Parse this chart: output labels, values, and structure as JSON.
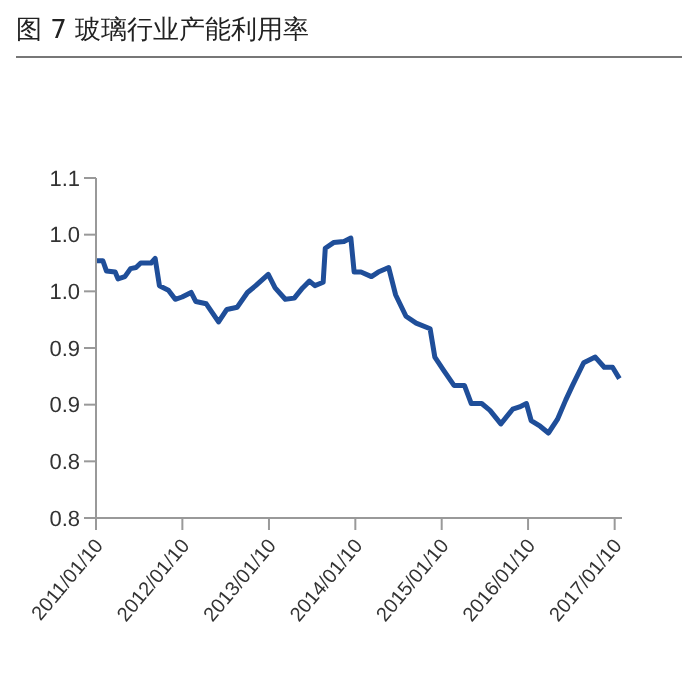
{
  "chart_data": {
    "type": "line",
    "title": "图 7 玻璃行业产能利用率",
    "x": [
      "2011-01-10",
      "2011-02-08",
      "2011-02-23",
      "2011-04-01",
      "2011-04-13",
      "2011-05-12",
      "2011-06-05",
      "2011-06-28",
      "2011-07-18",
      "2011-08-31",
      "2011-09-17",
      "2011-10-05",
      "2011-11-12",
      "2011-12-11",
      "2012-01-09",
      "2012-02-16",
      "2012-03-07",
      "2012-04-20",
      "2012-06-11",
      "2012-07-16",
      "2012-08-29",
      "2012-10-11",
      "2012-11-15",
      "2013-01-07",
      "2013-02-05",
      "2013-03-20",
      "2013-04-27",
      "2013-06-01",
      "2013-06-30",
      "2013-07-23",
      "2013-08-27",
      "2013-09-05",
      "2013-10-10",
      "2013-11-23",
      "2013-12-22",
      "2014-01-05",
      "2014-02-03",
      "2014-03-19",
      "2014-04-17",
      "2014-05-31",
      "2014-06-29",
      "2014-08-12",
      "2014-09-24",
      "2014-11-22",
      "2014-12-12",
      "2015-01-19",
      "2015-03-03",
      "2015-04-16",
      "2015-05-15",
      "2015-06-28",
      "2015-08-02",
      "2015-09-17",
      "2015-11-06",
      "2015-12-05",
      "2016-01-03",
      "2016-01-23",
      "2016-03-01",
      "2016-04-05",
      "2016-05-13",
      "2016-06-17",
      "2016-07-16",
      "2016-09-01",
      "2016-10-20",
      "2016-11-27",
      "2017-01-01",
      "2017-01-30"
    ],
    "series": [
      {
        "color": "#1f4e99",
        "values": [
          1.027,
          1.027,
          1.018,
          1.017,
          1.011,
          1.013,
          1.02,
          1.021,
          1.025,
          1.025,
          1.029,
          1.005,
          1.001,
          0.993,
          0.995,
          0.999,
          0.991,
          0.989,
          0.973,
          0.984,
          0.986,
          0.999,
          1.005,
          1.015,
          1.003,
          0.993,
          0.994,
          1.003,
          1.009,
          1.005,
          1.008,
          1.038,
          1.043,
          1.044,
          1.047,
          1.017,
          1.017,
          1.013,
          1.017,
          1.021,
          0.997,
          0.978,
          0.972,
          0.967,
          0.942,
          0.93,
          0.917,
          0.917,
          0.901,
          0.901,
          0.895,
          0.883,
          0.896,
          0.898,
          0.901,
          0.886,
          0.881,
          0.875,
          0.887,
          0.904,
          0.917,
          0.937,
          0.942,
          0.933,
          0.933,
          0.923
        ]
      }
    ],
    "xlim": [
      "2011-01-10",
      "2017-02-10"
    ],
    "xticks": [
      {
        "value": "2011-01-10",
        "label": "2011/01/10"
      },
      {
        "value": "2012-01-10",
        "label": "2012/01/10"
      },
      {
        "value": "2013-01-10",
        "label": "2013/01/10"
      },
      {
        "value": "2014-01-10",
        "label": "2014/01/10"
      },
      {
        "value": "2015-01-10",
        "label": "2015/01/10"
      },
      {
        "value": "2016-01-10",
        "label": "2016/01/10"
      },
      {
        "value": "2017-01-10",
        "label": "2017/01/10"
      }
    ],
    "ylim": [
      0.8,
      1.1
    ],
    "yticks": [
      {
        "value": 0.8,
        "label": "0.8"
      },
      {
        "value": 0.85,
        "label": "0.8"
      },
      {
        "value": 0.9,
        "label": "0.9"
      },
      {
        "value": 0.95,
        "label": "0.9"
      },
      {
        "value": 1.0,
        "label": "1.0"
      },
      {
        "value": 1.05,
        "label": "1.0"
      },
      {
        "value": 1.1,
        "label": "1.1"
      }
    ],
    "grid": false,
    "legend": false,
    "marker": "none",
    "line_style": "solid"
  }
}
